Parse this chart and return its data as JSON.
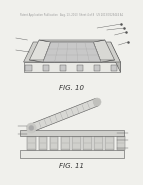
{
  "background_color": "#f0f0ec",
  "header_text": "Patent Application Publication   Aug. 13, 2013  Sheet 4 of 8   US 2013/0229444 A1",
  "header_fontsize": 1.8,
  "header_color": "#999999",
  "fig10_label": "FIG. 10",
  "fig11_label": "FIG. 11",
  "label_fontsize": 5.0,
  "line_color": "#555555",
  "light_gray": "#e8e8e4",
  "mid_gray": "#d0d0cc",
  "dark_gray": "#b8b8b4",
  "white": "#ffffff"
}
